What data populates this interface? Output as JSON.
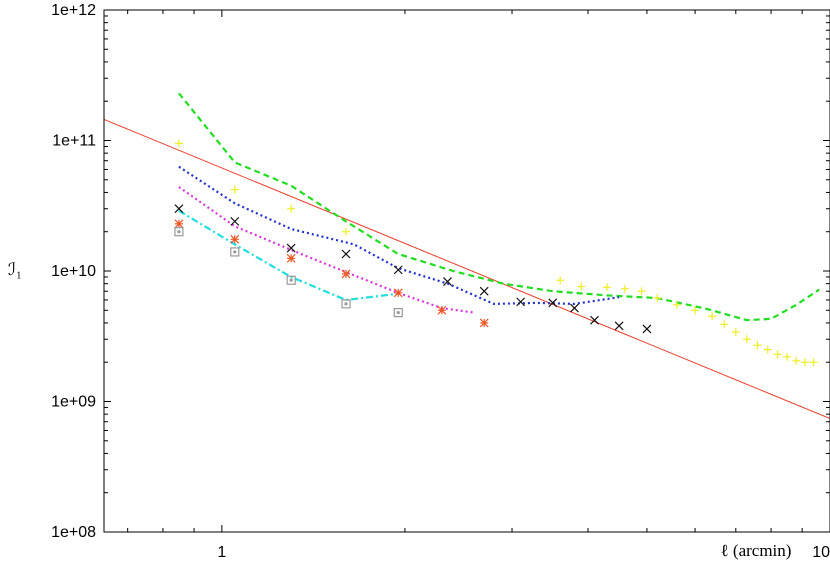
{
  "chart_data": {
    "type": "line",
    "title": "",
    "xlabel": "ℓ (arcmin)",
    "ylabel": "ℐ₁",
    "x_scale": "log",
    "y_scale": "log",
    "xlim": [
      0.64,
      10
    ],
    "ylim": [
      100000000.0,
      1000000000000.0
    ],
    "grid": false,
    "legend": "none",
    "x_ticks": [
      {
        "value": 1,
        "label": "1"
      },
      {
        "value": 10,
        "label": "10"
      }
    ],
    "y_ticks": [
      {
        "value": 100000000.0,
        "label": "1e+08"
      },
      {
        "value": 1000000000.0,
        "label": "1e+09"
      },
      {
        "value": 10000000000.0,
        "label": "1e+10"
      },
      {
        "value": 100000000000.0,
        "label": "1e+11"
      },
      {
        "value": 1000000000000.0,
        "label": "1e+12"
      }
    ],
    "series": [
      {
        "style": "solid",
        "color": "#e8402a",
        "x": [
          0.64,
          10
        ],
        "y": [
          145000000000.0,
          740000000.0
        ]
      },
      {
        "style": "dashed",
        "color": "#22dd22",
        "x": [
          0.85,
          1.05,
          1.3,
          1.6,
          1.95,
          2.4,
          2.9,
          3.5,
          4.3,
          5.2,
          6.3,
          7.3,
          8.0,
          8.8,
          9.6
        ],
        "y": [
          230000000000.0,
          68000000000.0,
          45000000000.0,
          24000000000.0,
          13500000000.0,
          10000000000.0,
          8000000000.0,
          7000000000.0,
          6500000000.0,
          6200000000.0,
          5100000000.0,
          4200000000.0,
          4300000000.0,
          5500000000.0,
          7200000000.0
        ]
      },
      {
        "style": "dotted",
        "color": "#2233cc",
        "x": [
          0.85,
          1.05,
          1.3,
          1.65,
          1.95,
          2.35,
          2.8,
          3.3,
          3.8,
          4.5
        ],
        "y": [
          63000000000.0,
          33000000000.0,
          21000000000.0,
          16000000000.0,
          10500000000.0,
          8000000000.0,
          5600000000.0,
          5700000000.0,
          5600000000.0,
          6300000000.0
        ]
      },
      {
        "style": "dotted",
        "color": "#dd33dd",
        "x": [
          0.85,
          1.05,
          1.3,
          1.6,
          1.95,
          2.3,
          2.6
        ],
        "y": [
          44000000000.0,
          22000000000.0,
          14500000000.0,
          9800000000.0,
          6800000000.0,
          5200000000.0,
          4800000000.0
        ]
      },
      {
        "style": "dashdot",
        "color": "#22dddd",
        "x": [
          0.85,
          1.05,
          1.3,
          1.6,
          1.95
        ],
        "y": [
          29000000000.0,
          16000000000.0,
          9000000000.0,
          6000000000.0,
          6700000000.0
        ]
      },
      {
        "style": "marker",
        "marker": "plus",
        "color": "#eeee22",
        "x": [
          0.85,
          1.05,
          1.3,
          1.6,
          3.6,
          3.9,
          4.3,
          4.6,
          4.9,
          5.2,
          5.6,
          6.0,
          6.4,
          6.7,
          7.0,
          7.3,
          7.6,
          7.9,
          8.2,
          8.5,
          8.8,
          9.1,
          9.4
        ],
        "y": [
          95000000000.0,
          42000000000.0,
          30000000000.0,
          20000000000.0,
          8500000000.0,
          7600000000.0,
          7500000000.0,
          7300000000.0,
          7000000000.0,
          6200000000.0,
          5500000000.0,
          5000000000.0,
          4500000000.0,
          3900000000.0,
          3400000000.0,
          3000000000.0,
          2700000000.0,
          2500000000.0,
          2300000000.0,
          2200000000.0,
          2050000000.0,
          2000000000.0,
          2000000000.0
        ]
      },
      {
        "style": "marker",
        "marker": "cross",
        "color": "#111111",
        "x": [
          0.85,
          1.05,
          1.3,
          1.6,
          1.95,
          2.35,
          2.7,
          3.1,
          3.5,
          3.8,
          4.1,
          4.5,
          5.0
        ],
        "y": [
          30000000000.0,
          24000000000.0,
          15000000000.0,
          13500000000.0,
          10200000000.0,
          8300000000.0,
          7000000000.0,
          5800000000.0,
          5700000000.0,
          5200000000.0,
          4200000000.0,
          3800000000.0,
          3600000000.0
        ]
      },
      {
        "style": "marker",
        "marker": "star",
        "color": "#ee5522",
        "x": [
          0.85,
          1.05,
          1.3,
          1.6,
          1.95,
          2.3,
          2.7
        ],
        "y": [
          23000000000.0,
          17500000000.0,
          12500000000.0,
          9500000000.0,
          6800000000.0,
          5000000000.0,
          4000000000.0
        ]
      },
      {
        "style": "marker",
        "marker": "boxdot",
        "color": "#999999",
        "x": [
          0.85,
          1.05,
          1.3,
          1.6,
          1.95
        ],
        "y": [
          20000000000.0,
          14000000000.0,
          8500000000.0,
          5600000000.0,
          4800000000.0
        ]
      }
    ]
  }
}
